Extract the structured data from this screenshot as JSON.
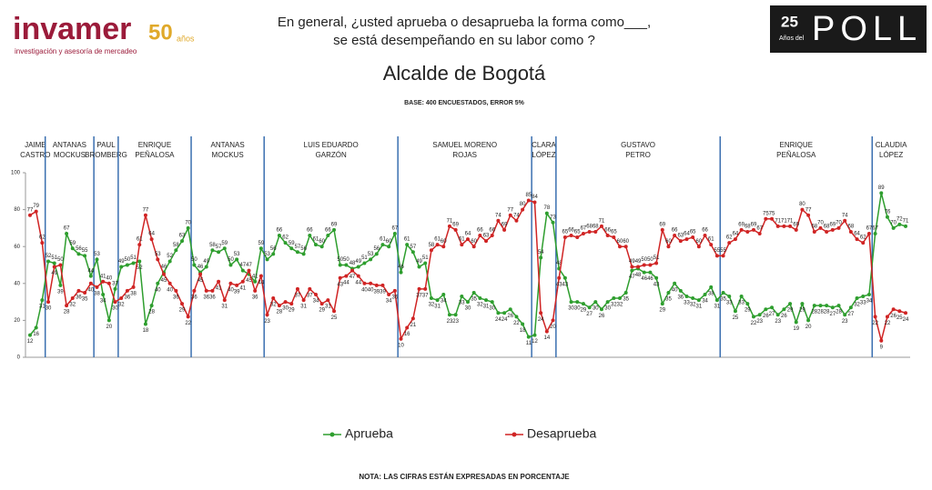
{
  "header": {
    "logo": "invamer",
    "logo_sub": "investigación y asesoría de mercadeo",
    "anniversary": "50",
    "anniversary_unit": "años",
    "question": [
      "En general, ¿usted aprueba o desaprueba la forma como___,",
      "se está desempeñando en su labor como ?"
    ],
    "poll_badge_num": "25",
    "poll_badge_sub": "Años del",
    "poll_badge_word": "POLL"
  },
  "chart_data": {
    "type": "line",
    "title": "Alcalde de Bogotá",
    "subtitle": "BASE: 400 ENCUESTADOS, ERROR 5%",
    "note": "NOTA: LAS CIFRAS ESTÁN EXPRESADAS EN PORCENTAJE",
    "ylim": [
      0,
      100
    ],
    "yticks": [
      0,
      20,
      40,
      60,
      80,
      100
    ],
    "grid": false,
    "legend": "bottom",
    "periods": [
      {
        "name": [
          "JAIME",
          "CASTRO"
        ],
        "start": 0
      },
      {
        "name": [
          "ANTANAS",
          "MOCKUS"
        ],
        "start": 3
      },
      {
        "name": [
          "PAUL",
          "BROMBERG"
        ],
        "start": 11
      },
      {
        "name": [
          "ENRIQUE",
          "PEÑALOSA"
        ],
        "start": 15
      },
      {
        "name": [
          "ANTANAS",
          "MOCKUS"
        ],
        "start": 27
      },
      {
        "name": [
          "LUIS EDUARDO",
          "GARZÓN"
        ],
        "start": 39
      },
      {
        "name": [
          "SAMUEL MORENO",
          "ROJAS"
        ],
        "start": 61
      },
      {
        "name": [
          "CLARA",
          "LÓPEZ"
        ],
        "start": 83
      },
      {
        "name": [
          "GUSTAVO",
          "PETRO"
        ],
        "start": 87
      },
      {
        "name": [
          "ENRIQUE",
          "PEÑALOSA"
        ],
        "start": 114
      },
      {
        "name": [
          "CLAUDIA",
          "LÓPEZ"
        ],
        "start": 139
      }
    ],
    "series": [
      {
        "name": "Aprueba",
        "color": "#2e9e2e",
        "values": [
          12,
          16,
          31,
          52,
          51,
          39,
          67,
          59,
          56,
          55,
          44,
          53,
          34,
          20,
          37,
          49,
          50,
          51,
          52,
          18,
          28,
          40,
          46,
          52,
          58,
          63,
          70,
          50,
          46,
          49,
          58,
          57,
          59,
          50,
          53,
          47,
          45,
          41,
          59,
          53,
          56,
          66,
          62,
          59,
          57,
          56,
          66,
          61,
          60,
          66,
          69,
          50,
          50,
          48,
          49,
          51,
          53,
          56,
          61,
          60,
          67,
          46,
          61,
          57,
          49,
          51,
          32,
          31,
          34,
          23,
          23,
          33,
          30,
          35,
          32,
          31,
          30,
          24,
          24,
          26,
          22,
          18,
          11,
          12,
          54,
          78,
          73,
          48,
          43,
          30,
          30,
          29,
          27,
          30,
          26,
          30,
          32,
          32,
          35,
          47,
          48,
          46,
          46,
          43,
          29,
          35,
          40,
          36,
          33,
          32,
          31,
          34,
          38,
          31,
          35,
          33,
          25,
          33,
          29,
          22,
          23,
          26,
          27,
          23,
          26,
          29,
          19,
          29,
          20,
          28,
          28,
          28,
          27,
          28,
          23,
          27,
          32,
          33,
          34,
          67,
          89,
          76,
          70,
          72,
          71
        ]
      },
      {
        "name": "Desaprueba",
        "color": "#d02424",
        "values": [
          77,
          79,
          62,
          30,
          49,
          50,
          28,
          32,
          36,
          35,
          40,
          38,
          41,
          40,
          30,
          32,
          36,
          38,
          61,
          77,
          64,
          53,
          45,
          40,
          36,
          29,
          22,
          36,
          45,
          36,
          36,
          41,
          31,
          40,
          39,
          41,
          47,
          36,
          44,
          23,
          32,
          28,
          30,
          29,
          37,
          31,
          37,
          34,
          29,
          31,
          25,
          43,
          44,
          47,
          44,
          40,
          40,
          39,
          39,
          34,
          36,
          10,
          16,
          21,
          37,
          37,
          58,
          61,
          60,
          71,
          69,
          61,
          64,
          60,
          66,
          63,
          66,
          74,
          69,
          77,
          74,
          80,
          85,
          84,
          24,
          14,
          20,
          43,
          65,
          66,
          65,
          67,
          68,
          68,
          71,
          66,
          65,
          60,
          60,
          49,
          49,
          50,
          50,
          51,
          69,
          60,
          66,
          63,
          64,
          65,
          60,
          66,
          61,
          55,
          55,
          62,
          64,
          69,
          68,
          69,
          67,
          75,
          75,
          71,
          71,
          71,
          69,
          80,
          77,
          68,
          70,
          68,
          69,
          70,
          74,
          68,
          64,
          62,
          67,
          22,
          9,
          22,
          26,
          25,
          24
        ]
      }
    ]
  }
}
